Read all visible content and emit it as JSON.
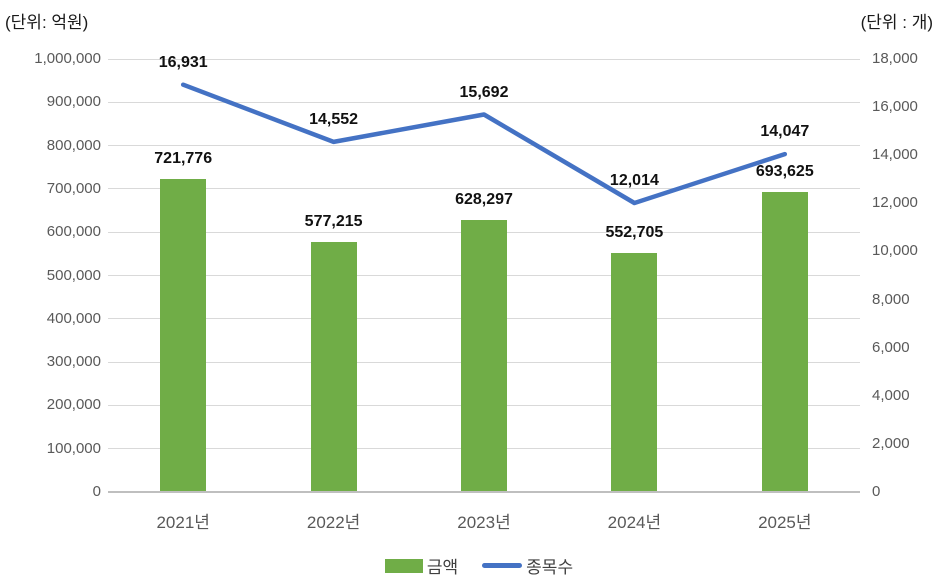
{
  "chart": {
    "left_unit": "(단위: 억원)",
    "right_unit": "(단위 : 개)"
  },
  "chart_data": {
    "type": "combo-bar-line",
    "title": "",
    "categories": [
      "2021년",
      "2022년",
      "2023년",
      "2024년",
      "2025년"
    ],
    "series": [
      {
        "name": "금액",
        "type": "bar",
        "axis": "left",
        "color": "#70AD47",
        "values": [
          721776,
          577215,
          628297,
          552705,
          693625
        ],
        "labels": [
          "721,776",
          "577,215",
          "628,297",
          "552,705",
          "693,625"
        ]
      },
      {
        "name": "종목수",
        "type": "line",
        "axis": "right",
        "color": "#4472C4",
        "values": [
          16931,
          14552,
          15692,
          12014,
          14047
        ],
        "labels": [
          "16,931",
          "14,552",
          "15,692",
          "12,014",
          "14,047"
        ]
      }
    ],
    "left_axis": {
      "unit": "(단위: 억원)",
      "min": 0,
      "max": 1000000,
      "step": 100000,
      "ticks": [
        "0",
        "100,000",
        "200,000",
        "300,000",
        "400,000",
        "500,000",
        "600,000",
        "700,000",
        "800,000",
        "900,000",
        "1,000,000"
      ]
    },
    "right_axis": {
      "unit": "(단위 : 개)",
      "min": 0,
      "max": 18000,
      "step": 2000,
      "ticks": [
        "0",
        "2,000",
        "4,000",
        "6,000",
        "8,000",
        "10,000",
        "12,000",
        "14,000",
        "16,000",
        "18,000"
      ]
    },
    "grid": true,
    "legend_position": "bottom",
    "colors": {
      "bar": "#70AD47",
      "line": "#4472C4",
      "gridline": "#d9d9d9",
      "axis_line": "#bfbfbf",
      "tick_text": "#595959",
      "data_label_text": "#111111"
    }
  }
}
